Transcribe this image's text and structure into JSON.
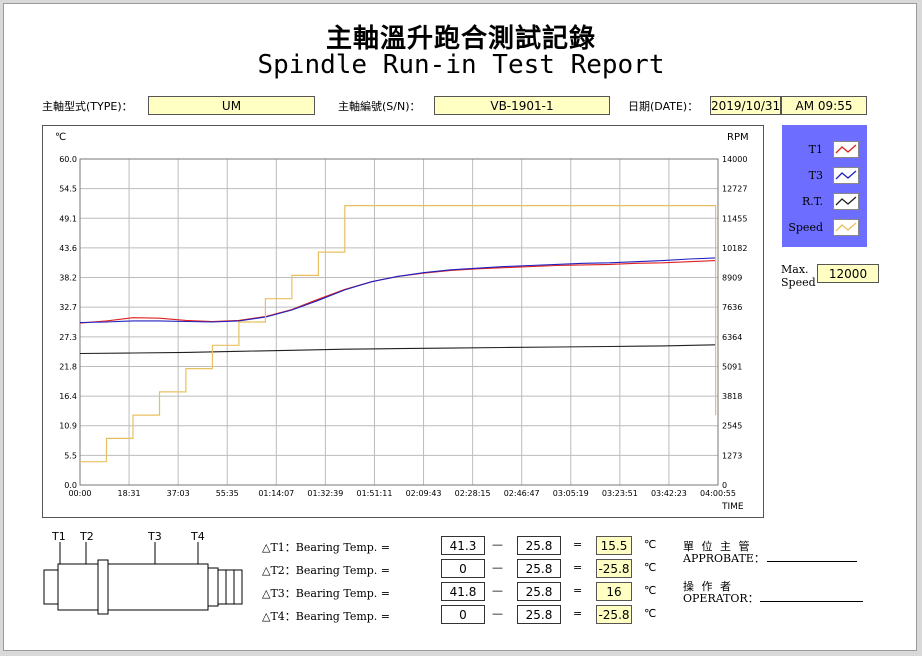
{
  "title_zh": "主軸溫升跑合測試記錄",
  "title_en": "Spindle Run-in Test Report",
  "header": {
    "type_label": "主軸型式(TYPE)：",
    "type_value": "UM",
    "sn_label": "主軸編號(S/N)：",
    "sn_value": "VB-1901-1",
    "date_label": "日期(DATE)：",
    "date_value": "2019/10/31",
    "time_value": "AM 09:55"
  },
  "legend": {
    "items": [
      {
        "name": "T1",
        "color": "#e02020"
      },
      {
        "name": "T3",
        "color": "#2020c0"
      },
      {
        "name": "R.T.",
        "color": "#202020"
      },
      {
        "name": "Speed",
        "color": "#e8c060"
      }
    ]
  },
  "max_speed": {
    "label_line1": "Max.",
    "label_line2": "Speed",
    "value": "12000"
  },
  "chart_data": {
    "type": "line",
    "left_axis_unit": "℃",
    "right_axis_unit": "RPM",
    "x_axis_label": "TIME",
    "left_ticks": [
      "60.0",
      "54.5",
      "49.1",
      "43.6",
      "38.2",
      "32.7",
      "27.3",
      "21.8",
      "16.4",
      "10.9",
      "5.5",
      "0.0"
    ],
    "right_ticks": [
      "14000",
      "12727",
      "11455",
      "10182",
      "8909",
      "7636",
      "6364",
      "5091",
      "3818",
      "2545",
      "1273",
      "0"
    ],
    "x_ticks": [
      "00:00",
      "18:31",
      "37:03",
      "55:35",
      "01:14:07",
      "01:32:39",
      "01:51:11",
      "02:09:43",
      "02:28:15",
      "02:46:47",
      "03:05:19",
      "03:23:51",
      "03:42:23",
      "04:00:55"
    ],
    "ylim_left": [
      0,
      60
    ],
    "ylim_right": [
      0,
      14000
    ],
    "xlim_minutes": [
      0,
      240.9
    ],
    "grid": true,
    "series": [
      {
        "name": "T1",
        "color": "#e02020",
        "axis": "left",
        "x": [
          0,
          10,
          20,
          30,
          40,
          50,
          60,
          70,
          80,
          90,
          100,
          110,
          120,
          130,
          140,
          150,
          160,
          170,
          180,
          190,
          200,
          210,
          220,
          230,
          240
        ],
        "y": [
          29.8,
          30.2,
          30.8,
          30.7,
          30.3,
          30.1,
          30.3,
          31.0,
          32.3,
          34.2,
          36.0,
          37.4,
          38.4,
          39.0,
          39.5,
          39.8,
          40.0,
          40.2,
          40.4,
          40.5,
          40.6,
          40.8,
          40.9,
          41.1,
          41.3
        ]
      },
      {
        "name": "T3",
        "color": "#2020c0",
        "axis": "left",
        "x": [
          0,
          10,
          20,
          30,
          40,
          50,
          60,
          70,
          80,
          90,
          100,
          110,
          120,
          130,
          140,
          150,
          160,
          170,
          180,
          190,
          200,
          210,
          220,
          230,
          240
        ],
        "y": [
          29.9,
          30.0,
          30.2,
          30.2,
          30.1,
          30.0,
          30.2,
          30.9,
          32.2,
          34.0,
          35.9,
          37.4,
          38.4,
          39.1,
          39.6,
          39.9,
          40.2,
          40.4,
          40.6,
          40.8,
          40.9,
          41.1,
          41.3,
          41.6,
          41.8
        ]
      },
      {
        "name": "R.T.",
        "color": "#202020",
        "axis": "left",
        "x": [
          0,
          20,
          40,
          60,
          80,
          100,
          120,
          140,
          160,
          180,
          200,
          220,
          240
        ],
        "y": [
          24.2,
          24.3,
          24.4,
          24.6,
          24.8,
          25.0,
          25.1,
          25.2,
          25.3,
          25.4,
          25.5,
          25.6,
          25.8
        ]
      },
      {
        "name": "Speed",
        "color": "#e8c060",
        "axis": "right",
        "x": [
          0,
          10,
          10,
          20,
          20,
          30,
          30,
          40,
          40,
          50,
          50,
          60,
          60,
          70,
          70,
          80,
          80,
          90,
          90,
          100,
          100,
          240,
          240
        ],
        "y": [
          1000,
          1000,
          2000,
          2000,
          3000,
          3000,
          4000,
          4000,
          5000,
          5000,
          6000,
          6000,
          7000,
          7000,
          8000,
          8000,
          9000,
          9000,
          10000,
          10000,
          12000,
          12000,
          3000
        ]
      }
    ]
  },
  "diagram": {
    "labels": [
      "T1",
      "T2",
      "T3",
      "T4"
    ]
  },
  "temps": {
    "rows": [
      {
        "label": "△T1：Bearing Temp. =",
        "a": "41.3",
        "b": "25.8",
        "result": "15.5",
        "unit": "℃"
      },
      {
        "label": "△T2：Bearing Temp. =",
        "a": "0",
        "b": "25.8",
        "result": "-25.8",
        "unit": "℃"
      },
      {
        "label": "△T3：Bearing Temp. =",
        "a": "41.8",
        "b": "25.8",
        "result": "16",
        "unit": "℃"
      },
      {
        "label": "△T4：Bearing Temp. =",
        "a": "0",
        "b": "25.8",
        "result": "-25.8",
        "unit": "℃"
      }
    ],
    "minus": "—",
    "equals": "="
  },
  "signatures": {
    "approbate_zh": "單 位 主 管",
    "approbate_en": "APPROBATE：",
    "operator_zh": "操 作 者",
    "operator_en": "OPERATOR："
  }
}
